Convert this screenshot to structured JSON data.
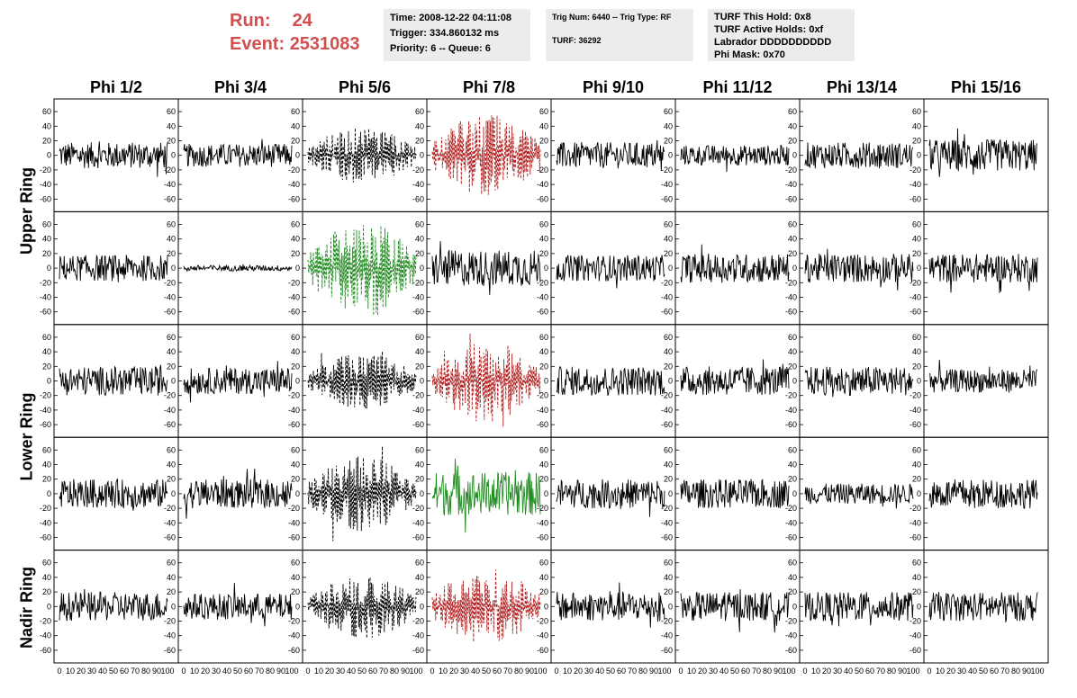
{
  "header": {
    "run_label": "Run:",
    "run_value": "24",
    "event_label": "Event:",
    "event_value": "2531083"
  },
  "info_box_1": {
    "time": "Time: 2008-12-22 04:11:08",
    "trigger": "Trigger: 334.860132 ms",
    "priority": "Priority: 6 -- Queue: 6"
  },
  "info_box_2": {
    "trig": "Trig Num: 6440 -- Trig Type: RF",
    "turf": "TURF: 36292"
  },
  "info_box_3": {
    "hold": "TURF This Hold: 0x8",
    "active": "TURF Active Holds: 0xf",
    "labrador": "Labrador DDDDDDDDDD",
    "mask": "Phi Mask: 0x70"
  },
  "phi_labels": [
    "Phi 1/2",
    "Phi 3/4",
    "Phi 5/6",
    "Phi 7/8",
    "Phi 9/10",
    "Phi 11/12",
    "Phi 13/14",
    "Phi 15/16"
  ],
  "ring_labels": [
    "Upper Ring",
    "Lower Ring",
    "Nadir Ring"
  ],
  "colors": {
    "accent_red": "#d0504f",
    "trace_black": "#000000",
    "trace_red": "#b22222",
    "trace_green": "#228b22",
    "box_bg": "#ececec"
  },
  "chart_data": {
    "type": "line",
    "description_rows": 5,
    "description_cols": 8,
    "ylim": [
      -70,
      70
    ],
    "xlim": [
      0,
      100
    ],
    "y_ticks": [
      "60",
      "40",
      "20",
      "0",
      "-20",
      "-40",
      "-60"
    ],
    "x_ticks": [
      "0",
      "10",
      "20",
      "30",
      "40",
      "50",
      "60",
      "70",
      "80",
      "90",
      "100"
    ],
    "panels": [
      [
        {
          "style": "solid",
          "color": "black",
          "amp": 18
        },
        {
          "style": "solid",
          "color": "black",
          "amp": 16
        },
        {
          "style": "dashed",
          "color": "black",
          "amp": 30
        },
        {
          "style": "dashed",
          "color": "red",
          "amp": 45
        },
        {
          "style": "solid",
          "color": "black",
          "amp": 18
        },
        {
          "style": "solid",
          "color": "black",
          "amp": 14
        },
        {
          "style": "solid",
          "color": "black",
          "amp": 18
        },
        {
          "style": "solid",
          "color": "black",
          "amp": 22
        }
      ],
      [
        {
          "style": "solid",
          "color": "black",
          "amp": 18
        },
        {
          "style": "solid",
          "color": "black",
          "amp": 4
        },
        {
          "style": "dashed",
          "color": "green",
          "amp": 50
        },
        {
          "style": "solid",
          "color": "black",
          "amp": 25
        },
        {
          "style": "solid",
          "color": "black",
          "amp": 18
        },
        {
          "style": "solid",
          "color": "black",
          "amp": 20
        },
        {
          "style": "solid",
          "color": "black",
          "amp": 20
        },
        {
          "style": "solid",
          "color": "black",
          "amp": 20
        }
      ],
      [
        {
          "style": "solid",
          "color": "black",
          "amp": 20
        },
        {
          "style": "solid",
          "color": "black",
          "amp": 18
        },
        {
          "style": "dashed",
          "color": "black",
          "amp": 30
        },
        {
          "style": "dashed",
          "color": "red",
          "amp": 45
        },
        {
          "style": "solid",
          "color": "black",
          "amp": 20
        },
        {
          "style": "solid",
          "color": "black",
          "amp": 20
        },
        {
          "style": "solid",
          "color": "black",
          "amp": 20
        },
        {
          "style": "solid",
          "color": "black",
          "amp": 16
        }
      ],
      [
        {
          "style": "solid",
          "color": "black",
          "amp": 20
        },
        {
          "style": "solid",
          "color": "black",
          "amp": 20
        },
        {
          "style": "dashed",
          "color": "black",
          "amp": 40
        },
        {
          "style": "solid",
          "color": "green",
          "amp": 30
        },
        {
          "style": "solid",
          "color": "black",
          "amp": 20
        },
        {
          "style": "solid",
          "color": "black",
          "amp": 20
        },
        {
          "style": "solid",
          "color": "black",
          "amp": 14
        },
        {
          "style": "solid",
          "color": "black",
          "amp": 20
        }
      ],
      [
        {
          "style": "solid",
          "color": "black",
          "amp": 20
        },
        {
          "style": "solid",
          "color": "black",
          "amp": 18
        },
        {
          "style": "dashed",
          "color": "black",
          "amp": 35
        },
        {
          "style": "dashed",
          "color": "red",
          "amp": 40
        },
        {
          "style": "solid",
          "color": "black",
          "amp": 20
        },
        {
          "style": "solid",
          "color": "black",
          "amp": 20
        },
        {
          "style": "solid",
          "color": "black",
          "amp": 20
        },
        {
          "style": "solid",
          "color": "black",
          "amp": 20
        }
      ]
    ]
  }
}
